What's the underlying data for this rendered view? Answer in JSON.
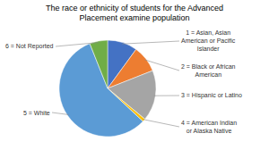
{
  "chart_data": {
    "type": "pie",
    "title": "The race or ethnicity of students for the Advanced\nPlacement examine population",
    "categories": [
      "1 = Asian, Asian\nAmerican or Pacific\nIslander",
      "2 = Black or African\nAmerican",
      "3 = Hispanic or Latino",
      "4 = American Indian\nor Alaska Native",
      "5 = White",
      "6 = Not Reported"
    ],
    "values": [
      10,
      9,
      17,
      1,
      57,
      6
    ],
    "colors": [
      "#4472c4",
      "#ed7d31",
      "#a5a5a5",
      "#ffc000",
      "#5b9bd5",
      "#70ad47"
    ]
  }
}
